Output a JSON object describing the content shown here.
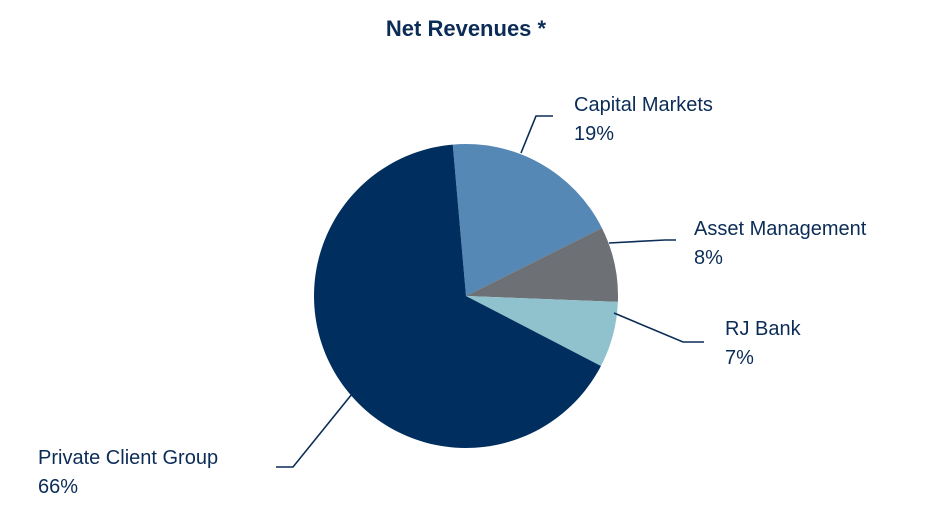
{
  "chart_data": {
    "type": "pie",
    "title": "Net Revenues *",
    "slices": [
      {
        "name": "Capital Markets",
        "value": 19,
        "label": "19%",
        "color": "#5588b4"
      },
      {
        "name": "Asset Management",
        "value": 8,
        "label": "8%",
        "color": "#6d7074"
      },
      {
        "name": "RJ Bank",
        "value": 7,
        "label": "7%",
        "color": "#8fc2cd"
      },
      {
        "name": "Private Client Group",
        "value": 66,
        "label": "66%",
        "color": "#002f5f"
      }
    ],
    "start_angle_deg": -5,
    "direction": "clockwise",
    "label_color": "#0b2c57",
    "leader_line_color": "#0b2c57"
  }
}
